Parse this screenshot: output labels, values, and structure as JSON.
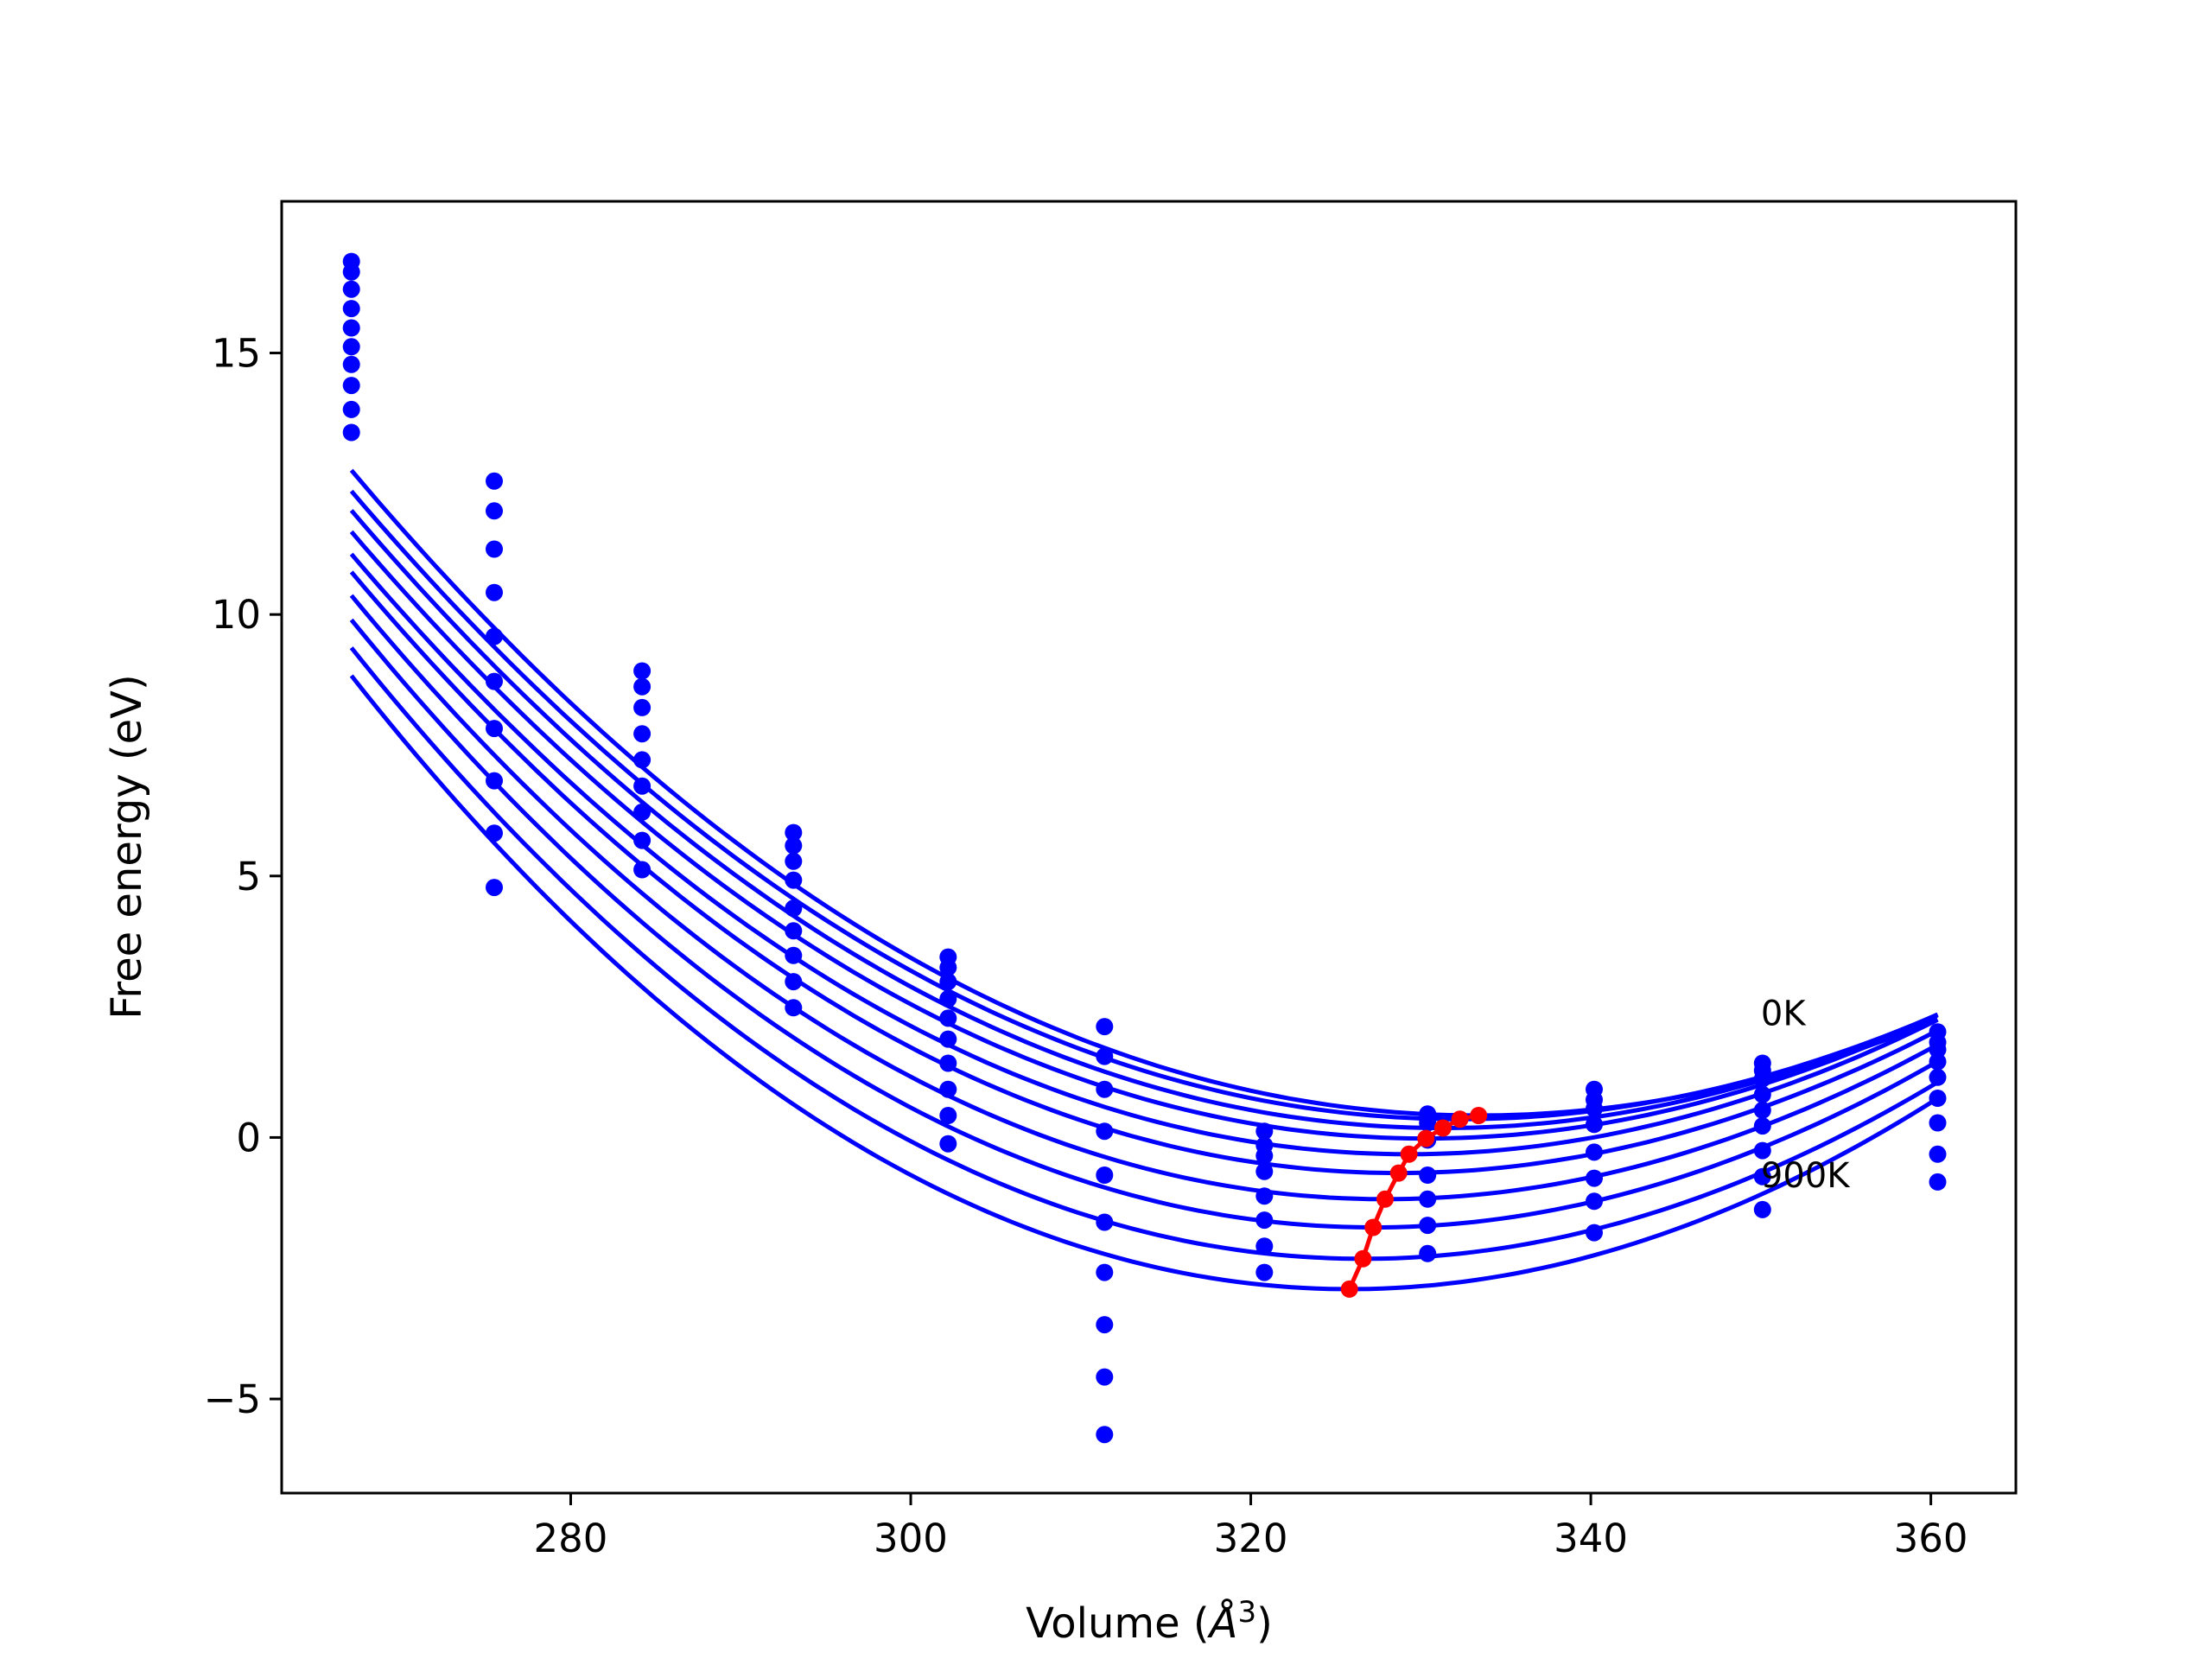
{
  "chart_data": {
    "type": "line",
    "title": "",
    "xlabel": "Volume (Å³)",
    "xlabel_base": "Volume (",
    "xlabel_symbol": "Å",
    "xlabel_exp": "3",
    "xlabel_close": ")",
    "ylabel": "Free energy (eV)",
    "xlim": [
      263,
      365
    ],
    "ylim": [
      -6.8,
      17.9
    ],
    "x_ticks": [
      280,
      300,
      320,
      340,
      360
    ],
    "x_tick_labels": [
      "280",
      "300",
      "320",
      "340",
      "360"
    ],
    "y_ticks": [
      -5,
      0,
      5,
      10,
      15
    ],
    "y_tick_labels": [
      "−5",
      "0",
      "5",
      "10",
      "15"
    ],
    "grid": false,
    "colors": {
      "fit_curves": "#0000ff",
      "data_points": "#0000ff",
      "minimum_path": "#ff0000",
      "frame": "#000000"
    },
    "x_volumes": [
      267.1,
      275.5,
      284.2,
      293.1,
      302.2,
      311.4,
      320.8,
      330.4,
      340.2,
      350.1,
      360.4
    ],
    "series": [
      {
        "values": [
          16.75,
          12.55,
          8.92,
          5.83,
          3.45,
          2.12,
          0.12,
          0.45,
          0.92,
          1.42,
          2.02
        ]
      },
      {
        "values": [
          16.55,
          11.98,
          8.62,
          5.58,
          3.25,
          1.55,
          -0.15,
          0.42,
          0.72,
          1.28,
          1.82
        ]
      },
      {
        "values": [
          16.22,
          11.25,
          8.22,
          5.28,
          2.98,
          0.92,
          -0.35,
          0.28,
          0.55,
          1.12,
          1.68
        ]
      },
      {
        "values": [
          15.85,
          10.42,
          7.72,
          4.92,
          2.65,
          0.12,
          -0.65,
          -0.05,
          0.25,
          0.82,
          1.45
        ]
      },
      {
        "values": [
          15.48,
          9.58,
          7.22,
          4.38,
          2.28,
          -0.72,
          -1.12,
          -0.72,
          -0.28,
          0.52,
          1.15
        ]
      },
      {
        "values": [
          15.12,
          8.72,
          6.72,
          3.95,
          1.88,
          -1.62,
          -1.58,
          -1.18,
          -0.78,
          0.22,
          0.75
        ]
      },
      {
        "values": [
          14.78,
          7.82,
          6.22,
          3.48,
          1.42,
          -2.58,
          -2.08,
          -1.68,
          -1.22,
          -0.25,
          0.28
        ]
      },
      {
        "values": [
          14.38,
          6.82,
          5.68,
          2.98,
          0.92,
          -3.58,
          -2.58,
          -2.22,
          -1.82,
          -0.75,
          -0.32
        ]
      },
      {
        "values": [
          13.92,
          5.82,
          5.12,
          2.48,
          0.42,
          -4.58,
          null,
          null,
          null,
          -1.38,
          -0.85
        ]
      },
      {
        "values": [
          13.48,
          4.78,
          null,
          null,
          -0.12,
          -5.68,
          null,
          null,
          null,
          null,
          null
        ]
      }
    ],
    "fit_curves": [
      {
        "min_v": 333.4,
        "min_e": 0.42,
        "b": 0.0026,
        "x_start": 267.1,
        "x_end": 360.4
      },
      {
        "min_v": 332.3,
        "min_e": 0.35,
        "b": 0.00262,
        "x_start": 267.1,
        "x_end": 360.4
      },
      {
        "min_v": 331.3,
        "min_e": 0.18,
        "b": 0.00266,
        "x_start": 267.1,
        "x_end": 360.4
      },
      {
        "min_v": 330.3,
        "min_e": -0.02,
        "b": 0.0027,
        "x_start": 267.1,
        "x_end": 360.4
      },
      {
        "min_v": 329.3,
        "min_e": -0.32,
        "b": 0.00276,
        "x_start": 267.1,
        "x_end": 360.4
      },
      {
        "min_v": 328.7,
        "min_e": -0.68,
        "b": 0.00282,
        "x_start": 267.1,
        "x_end": 360.4
      },
      {
        "min_v": 327.9,
        "min_e": -1.18,
        "b": 0.00291,
        "x_start": 267.1,
        "x_end": 360.4
      },
      {
        "min_v": 327.2,
        "min_e": -1.72,
        "b": 0.003,
        "x_start": 267.1,
        "x_end": 360.4
      },
      {
        "min_v": 326.6,
        "min_e": -2.32,
        "b": 0.00308,
        "x_start": 267.1,
        "x_end": 360.4
      },
      {
        "min_v": 325.8,
        "min_e": -2.9,
        "b": 0.00318,
        "x_start": 267.1,
        "x_end": 360.4
      }
    ],
    "minimum_path": {
      "x": [
        333.4,
        332.3,
        331.3,
        330.3,
        329.3,
        328.7,
        327.9,
        327.2,
        326.6,
        325.8
      ],
      "y": [
        0.42,
        0.35,
        0.18,
        -0.02,
        -0.32,
        -0.68,
        -1.18,
        -1.72,
        -2.32,
        -2.9
      ]
    },
    "annotations": [
      {
        "text": "0K",
        "x": 350.0,
        "y": 2.15
      },
      {
        "text": "900K",
        "x": 350.0,
        "y": -0.95
      }
    ]
  }
}
